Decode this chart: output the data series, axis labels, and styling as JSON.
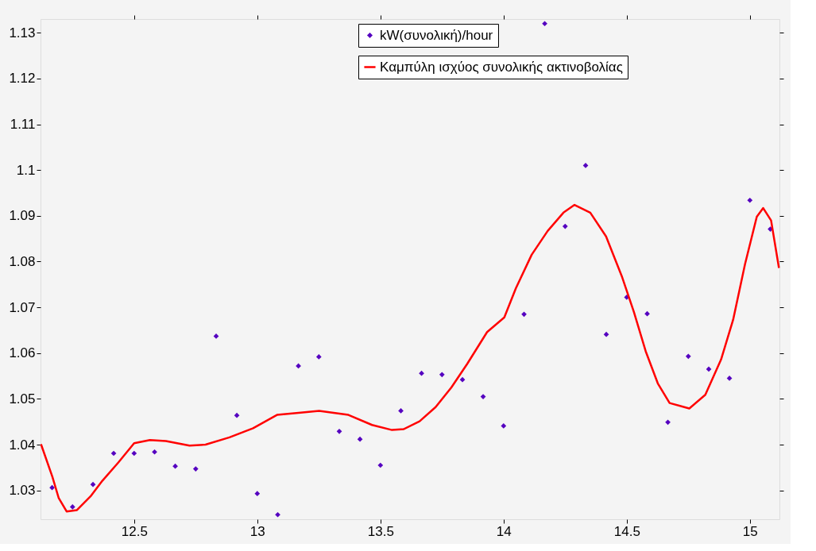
{
  "chart_data": {
    "type": "scatter",
    "xlim": [
      12.12,
      15.12
    ],
    "ylim": [
      1.0237,
      1.133
    ],
    "xticks": [
      12.5,
      13,
      13.5,
      14,
      14.5,
      15
    ],
    "yticks": [
      1.03,
      1.04,
      1.05,
      1.06,
      1.07,
      1.08,
      1.09,
      {
        "value": 1.1,
        "label": "1.1"
      },
      1.11,
      1.12,
      1.13
    ],
    "grid": false,
    "legend": "top right",
    "series": [
      {
        "name": "kW(συνολική)/hour",
        "color": "#5500c0",
        "marker": "diamond",
        "x": [
          12.167,
          12.25,
          12.333,
          12.417,
          12.5,
          12.583,
          12.667,
          12.75,
          12.833,
          12.917,
          13.0,
          13.083,
          13.167,
          13.25,
          13.333,
          13.417,
          13.5,
          13.583,
          13.667,
          13.75,
          13.833,
          13.917,
          14.0,
          14.083,
          14.167,
          14.25,
          14.333,
          14.417,
          14.5,
          14.583,
          14.667,
          14.75,
          14.833,
          14.917,
          15.0,
          15.083
        ],
        "values": [
          1.0306,
          1.0264,
          1.0313,
          1.0381,
          1.0381,
          1.0384,
          1.0353,
          1.0347,
          1.0637,
          1.0464,
          1.0293,
          1.0247,
          1.0572,
          1.0592,
          1.0429,
          1.0412,
          1.0355,
          1.0474,
          1.0556,
          1.0553,
          1.0542,
          1.0505,
          1.0441,
          1.0685,
          1.132,
          1.0877,
          1.101,
          1.0641,
          1.0722,
          1.0686,
          1.0449,
          1.0593,
          1.0565,
          1.0545,
          1.0934,
          1.0871
        ]
      },
      {
        "name": "Καμπύλη ισχύος συνολικής ακτινοβολίας",
        "color": "#ff0000",
        "type": "line",
        "marker": "none",
        "line_style": "solid",
        "x": [
          12.122,
          12.168,
          12.194,
          12.226,
          12.268,
          12.323,
          12.371,
          12.436,
          12.5,
          12.564,
          12.629,
          12.725,
          12.79,
          12.887,
          12.983,
          13.08,
          13.176,
          13.251,
          13.37,
          13.466,
          13.547,
          13.595,
          13.659,
          13.724,
          13.788,
          13.853,
          13.933,
          14.003,
          14.05,
          14.114,
          14.179,
          14.243,
          14.288,
          14.352,
          14.416,
          14.48,
          14.529,
          14.577,
          14.626,
          14.674,
          14.754,
          14.819,
          14.883,
          14.932,
          14.98,
          15.028,
          15.054,
          15.086,
          15.118
        ],
        "values": [
          1.0401,
          1.033,
          1.0283,
          1.0254,
          1.0257,
          1.0287,
          1.0321,
          1.0361,
          1.0403,
          1.041,
          1.0408,
          1.0398,
          1.04,
          1.0416,
          1.0436,
          1.0465,
          1.047,
          1.0474,
          1.0465,
          1.0443,
          1.0432,
          1.0434,
          1.0451,
          1.0482,
          1.0525,
          1.0577,
          1.0646,
          1.0678,
          1.0742,
          1.0815,
          1.0867,
          1.0907,
          1.0924,
          1.0907,
          1.0855,
          1.0768,
          1.069,
          1.0604,
          1.0534,
          1.0491,
          1.0479,
          1.0509,
          1.0586,
          1.0673,
          1.0794,
          1.0898,
          1.0917,
          1.089,
          1.0786
        ]
      }
    ]
  }
}
